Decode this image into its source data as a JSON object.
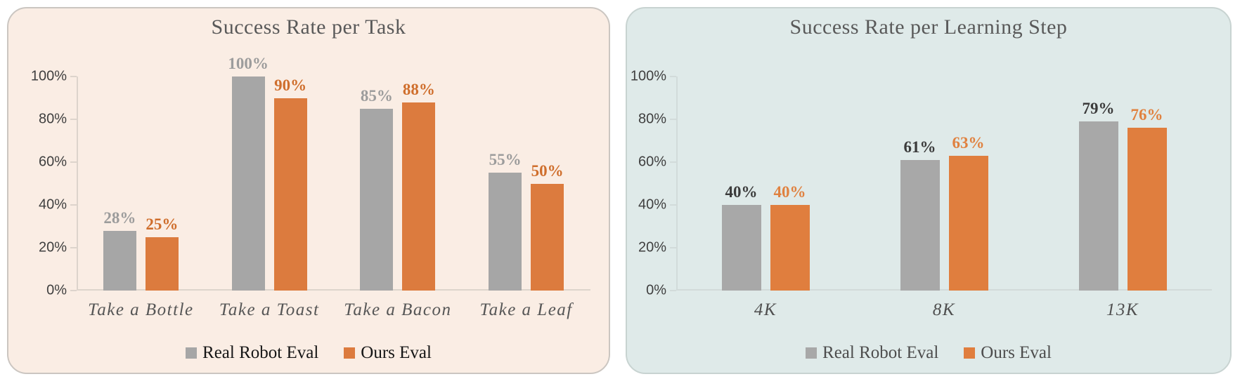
{
  "page": {
    "background": "#ffffff"
  },
  "chart_data": [
    {
      "type": "bar",
      "title": "Success Rate per Task",
      "categories": [
        "Take a Bottle",
        "Take a Toast",
        "Take a Bacon",
        "Take a Leaf"
      ],
      "series": [
        {
          "name": "Real Robot Eval",
          "color": "#a6a6a6",
          "label_color": "#9c9c9c",
          "values": [
            28,
            100,
            85,
            55
          ],
          "labels": [
            "28%",
            "100%",
            "85%",
            "55%"
          ]
        },
        {
          "name": "Ours Eval",
          "color": "#dc7b3e",
          "label_color": "#cf6e2c",
          "values": [
            25,
            90,
            88,
            50
          ],
          "labels": [
            "25%",
            "90%",
            "88%",
            "50%"
          ]
        }
      ],
      "ylim": [
        0,
        100
      ],
      "yticks": [
        0,
        20,
        40,
        60,
        80,
        100
      ],
      "ytick_labels": [
        "0%",
        "20%",
        "40%",
        "60%",
        "80%",
        "100%"
      ],
      "grid": false,
      "legend_position": "bottom",
      "panel_bg": "#faede4",
      "panel_border": "#cbc6c1",
      "title_color": "#595959",
      "axis_color": "#ddd4cc",
      "tick_label_color": "#3f3f3f",
      "category_color": "#565656",
      "legend_text_color": "#161616"
    },
    {
      "type": "bar",
      "title": "Success Rate per Learning Step",
      "categories": [
        "4K",
        "8K",
        "13K"
      ],
      "series": [
        {
          "name": "Real Robot Eval",
          "color": "#a8a8a8",
          "label_color": "#3b3b3b",
          "values": [
            40,
            61,
            79
          ],
          "labels": [
            "40%",
            "61%",
            "79%"
          ]
        },
        {
          "name": "Ours Eval",
          "color": "#e07e3e",
          "label_color": "#e0813f",
          "values": [
            40,
            63,
            76
          ],
          "labels": [
            "40%",
            "63%",
            "76%"
          ]
        }
      ],
      "ylim": [
        0,
        100
      ],
      "yticks": [
        0,
        20,
        40,
        60,
        80,
        100
      ],
      "ytick_labels": [
        "0%",
        "20%",
        "40%",
        "60%",
        "80%",
        "100%"
      ],
      "grid": false,
      "legend_position": "bottom",
      "panel_bg": "#dfeae9",
      "panel_border": "#c8d3d1",
      "title_color": "#595959",
      "axis_color": "#d2dbda",
      "tick_label_color": "#3f3f3f",
      "category_color": "#4f4f4f",
      "legend_text_color": "#4d4d4d"
    }
  ]
}
